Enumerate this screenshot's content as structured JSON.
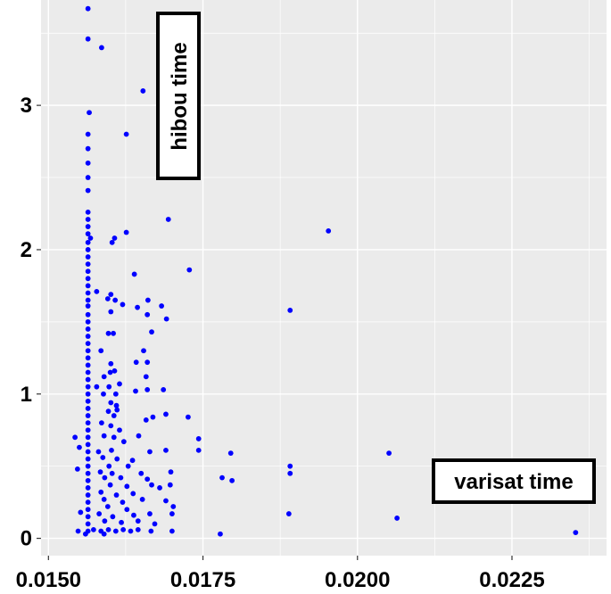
{
  "chart_data": {
    "type": "scatter",
    "title": "",
    "xlabel": "",
    "ylabel": "",
    "xlim": [
      0.01488,
      0.02403
    ],
    "ylim": [
      -0.12,
      3.73
    ],
    "x_ticks": [
      0.015,
      0.0175,
      0.02,
      0.0225
    ],
    "x_tick_labels": [
      "0.0150",
      "0.0175",
      "0.0200",
      "0.0225"
    ],
    "y_ticks": [
      0,
      1,
      2,
      3
    ],
    "y_tick_labels": [
      "0",
      "1",
      "2",
      "3"
    ],
    "grid": true,
    "background": "#ebebeb",
    "grid_color": "#ffffff",
    "point_color": "#0000ff",
    "legend": "none",
    "annotations": [
      {
        "text": "hibou time",
        "orientation": "vertical",
        "position": "top-left"
      },
      {
        "text": "varisat time",
        "orientation": "horizontal",
        "position": "bottom-right"
      }
    ],
    "points": [
      [
        0.01564,
        3.67
      ],
      [
        0.01564,
        3.46
      ],
      [
        0.01586,
        3.4
      ],
      [
        0.01653,
        3.1
      ],
      [
        0.01566,
        2.95
      ],
      [
        0.01626,
        2.8
      ],
      [
        0.01564,
        2.8
      ],
      [
        0.01564,
        2.7
      ],
      [
        0.01564,
        2.6
      ],
      [
        0.01564,
        2.5
      ],
      [
        0.01564,
        2.41
      ],
      [
        0.01564,
        2.26
      ],
      [
        0.01564,
        2.21
      ],
      [
        0.01694,
        2.21
      ],
      [
        0.01564,
        2.16
      ],
      [
        0.01953,
        2.13
      ],
      [
        0.01626,
        2.12
      ],
      [
        0.01564,
        2.11
      ],
      [
        0.01568,
        2.08
      ],
      [
        0.01607,
        2.08
      ],
      [
        0.01564,
        2.05
      ],
      [
        0.01603,
        2.05
      ],
      [
        0.01564,
        2.0
      ],
      [
        0.01564,
        1.95
      ],
      [
        0.01564,
        1.9
      ],
      [
        0.01728,
        1.86
      ],
      [
        0.01564,
        1.85
      ],
      [
        0.01639,
        1.83
      ],
      [
        0.01564,
        1.8
      ],
      [
        0.01564,
        1.75
      ],
      [
        0.01578,
        1.71
      ],
      [
        0.01564,
        1.7
      ],
      [
        0.01601,
        1.69
      ],
      [
        0.01596,
        1.66
      ],
      [
        0.01608,
        1.65
      ],
      [
        0.01564,
        1.65
      ],
      [
        0.01661,
        1.65
      ],
      [
        0.01564,
        1.61
      ],
      [
        0.0162,
        1.62
      ],
      [
        0.01644,
        1.6
      ],
      [
        0.01683,
        1.61
      ],
      [
        0.01891,
        1.58
      ],
      [
        0.01601,
        1.57
      ],
      [
        0.01564,
        1.55
      ],
      [
        0.0166,
        1.55
      ],
      [
        0.01691,
        1.52
      ],
      [
        0.01564,
        1.5
      ],
      [
        0.01564,
        1.45
      ],
      [
        0.01564,
        1.4
      ],
      [
        0.01667,
        1.43
      ],
      [
        0.01597,
        1.42
      ],
      [
        0.01605,
        1.42
      ],
      [
        0.01564,
        1.35
      ],
      [
        0.01564,
        1.3
      ],
      [
        0.01585,
        1.3
      ],
      [
        0.01654,
        1.3
      ],
      [
        0.01564,
        1.25
      ],
      [
        0.01564,
        1.2
      ],
      [
        0.01601,
        1.21
      ],
      [
        0.01642,
        1.22
      ],
      [
        0.0166,
        1.22
      ],
      [
        0.01564,
        1.15
      ],
      [
        0.016,
        1.15
      ],
      [
        0.01607,
        1.16
      ],
      [
        0.0159,
        1.12
      ],
      [
        0.01658,
        1.12
      ],
      [
        0.01564,
        1.1
      ],
      [
        0.01564,
        1.05
      ],
      [
        0.01578,
        1.05
      ],
      [
        0.01598,
        1.05
      ],
      [
        0.01615,
        1.07
      ],
      [
        0.01564,
        1.0
      ],
      [
        0.01589,
        1.0
      ],
      [
        0.01609,
        1.0
      ],
      [
        0.01641,
        1.02
      ],
      [
        0.0166,
        1.03
      ],
      [
        0.01686,
        1.03
      ],
      [
        0.01564,
        0.95
      ],
      [
        0.01601,
        0.94
      ],
      [
        0.0161,
        0.92
      ],
      [
        0.01564,
        0.9
      ],
      [
        0.01597,
        0.88
      ],
      [
        0.01611,
        0.89
      ],
      [
        0.01564,
        0.85
      ],
      [
        0.01606,
        0.85
      ],
      [
        0.0169,
        0.86
      ],
      [
        0.01726,
        0.84
      ],
      [
        0.01658,
        0.82
      ],
      [
        0.01669,
        0.84
      ],
      [
        0.01564,
        0.8
      ],
      [
        0.01586,
        0.8
      ],
      [
        0.01601,
        0.78
      ],
      [
        0.01564,
        0.75
      ],
      [
        0.01615,
        0.75
      ],
      [
        0.01564,
        0.7
      ],
      [
        0.0159,
        0.71
      ],
      [
        0.01606,
        0.7
      ],
      [
        0.01646,
        0.71
      ],
      [
        0.01543,
        0.7
      ],
      [
        0.01564,
        0.65
      ],
      [
        0.01622,
        0.67
      ],
      [
        0.01743,
        0.69
      ],
      [
        0.0155,
        0.63
      ],
      [
        0.01564,
        0.6
      ],
      [
        0.01581,
        0.6
      ],
      [
        0.01602,
        0.61
      ],
      [
        0.01664,
        0.6
      ],
      [
        0.0169,
        0.61
      ],
      [
        0.01743,
        0.61
      ],
      [
        0.01795,
        0.59
      ],
      [
        0.02051,
        0.59
      ],
      [
        0.01564,
        0.55
      ],
      [
        0.01588,
        0.56
      ],
      [
        0.01611,
        0.55
      ],
      [
        0.01636,
        0.54
      ],
      [
        0.01564,
        0.5
      ],
      [
        0.01598,
        0.5
      ],
      [
        0.01629,
        0.5
      ],
      [
        0.01891,
        0.5
      ],
      [
        0.01547,
        0.48
      ],
      [
        0.01564,
        0.45
      ],
      [
        0.01584,
        0.46
      ],
      [
        0.01603,
        0.45
      ],
      [
        0.0165,
        0.45
      ],
      [
        0.01698,
        0.46
      ],
      [
        0.01891,
        0.45
      ],
      [
        0.01564,
        0.4
      ],
      [
        0.01591,
        0.42
      ],
      [
        0.01617,
        0.42
      ],
      [
        0.0166,
        0.41
      ],
      [
        0.01781,
        0.42
      ],
      [
        0.01797,
        0.4
      ],
      [
        0.01564,
        0.35
      ],
      [
        0.016,
        0.37
      ],
      [
        0.01627,
        0.36
      ],
      [
        0.01667,
        0.37
      ],
      [
        0.0168,
        0.35
      ],
      [
        0.01697,
        0.37
      ],
      [
        0.01564,
        0.3
      ],
      [
        0.01585,
        0.32
      ],
      [
        0.0161,
        0.3
      ],
      [
        0.01637,
        0.31
      ],
      [
        0.01564,
        0.25
      ],
      [
        0.0159,
        0.27
      ],
      [
        0.0162,
        0.25
      ],
      [
        0.01652,
        0.27
      ],
      [
        0.0169,
        0.26
      ],
      [
        0.01564,
        0.2
      ],
      [
        0.01596,
        0.22
      ],
      [
        0.01627,
        0.2
      ],
      [
        0.01702,
        0.22
      ],
      [
        0.01552,
        0.18
      ],
      [
        0.01564,
        0.15
      ],
      [
        0.01582,
        0.17
      ],
      [
        0.01604,
        0.15
      ],
      [
        0.01638,
        0.16
      ],
      [
        0.01664,
        0.17
      ],
      [
        0.017,
        0.17
      ],
      [
        0.01889,
        0.17
      ],
      [
        0.01564,
        0.1
      ],
      [
        0.01591,
        0.12
      ],
      [
        0.01618,
        0.11
      ],
      [
        0.01645,
        0.12
      ],
      [
        0.01672,
        0.1
      ],
      [
        0.02064,
        0.14
      ],
      [
        0.01564,
        0.05
      ],
      [
        0.01548,
        0.05
      ],
      [
        0.01573,
        0.06
      ],
      [
        0.01585,
        0.05
      ],
      [
        0.01597,
        0.06
      ],
      [
        0.01609,
        0.05
      ],
      [
        0.01621,
        0.06
      ],
      [
        0.01633,
        0.05
      ],
      [
        0.01645,
        0.06
      ],
      [
        0.01666,
        0.05
      ],
      [
        0.017,
        0.05
      ],
      [
        0.01778,
        0.03
      ],
      [
        0.02353,
        0.04
      ],
      [
        0.0156,
        0.03
      ],
      [
        0.0159,
        0.03
      ]
    ]
  }
}
